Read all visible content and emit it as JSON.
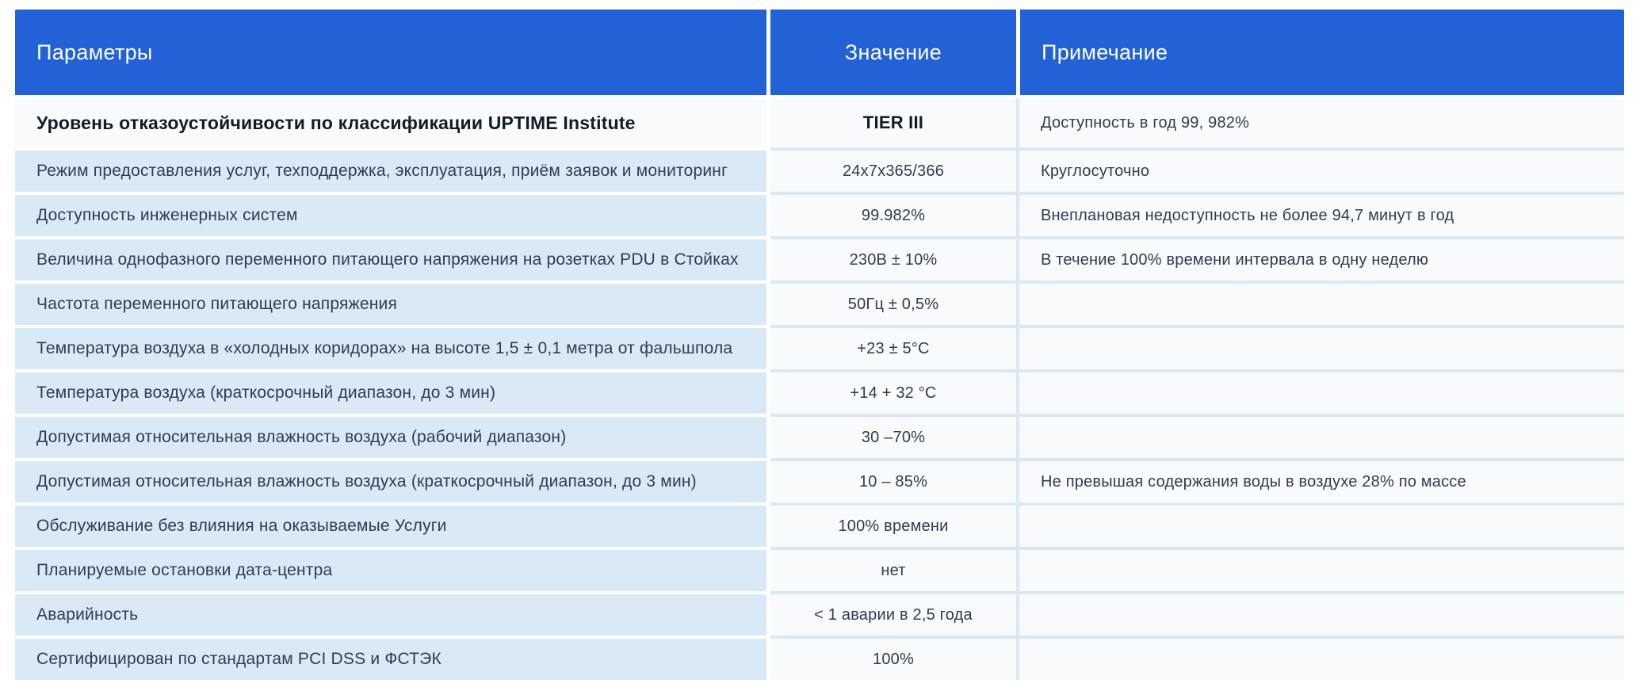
{
  "table": {
    "header": {
      "params": "Параметры",
      "value": "Значение",
      "note": "Примечание"
    },
    "rows": [
      {
        "param": "Уровень отказоустойчивости по классификации UPTIME Institute",
        "value": "TIER III",
        "note": "Доступность в год 99, 982%"
      },
      {
        "param": "Режим предоставления услуг, техподдержка, эксплуатация, приём заявок и мониторинг",
        "value": "24x7x365/366",
        "note": "Круглосуточно"
      },
      {
        "param": "Доступность инженерных систем",
        "value": "99.982%",
        "note": "Внеплановая недоступность не более 94,7 минут в год"
      },
      {
        "param": "Величина однофазного переменного питающего напряжения на розетках PDU в Стойках",
        "value": "230В ± 10%",
        "note": "В течение 100% времени интервала в одну неделю"
      },
      {
        "param": "Частота переменного питающего напряжения",
        "value": "50Гц ± 0,5%",
        "note": ""
      },
      {
        "param": "Температура воздуха в «холодных коридорах» на высоте 1,5 ± 0,1 метра от фальшпола",
        "value": "+23 ± 5°C",
        "note": ""
      },
      {
        "param": "Температура воздуха (краткосрочный диапазон, до 3 мин)",
        "value": "+14 + 32 °C",
        "note": ""
      },
      {
        "param": "Допустимая относительная влажность воздуха (рабочий диапазон)",
        "value": "30 –70%",
        "note": ""
      },
      {
        "param": "Допустимая относительная влажность воздуха (краткосрочный диапазон, до 3 мин)",
        "value": "10 – 85%",
        "note": "Не превышая содержания воды в воздухе 28% по массе"
      },
      {
        "param": "Обслуживание без влияния на оказываемые Услуги",
        "value": "100% времени",
        "note": ""
      },
      {
        "param": "Планируемые остановки дата-центра",
        "value": "нет",
        "note": ""
      },
      {
        "param": "Аварийность",
        "value": "< 1 аварии в 2,5 года",
        "note": ""
      },
      {
        "param": "Сертифицирован по стандартам PCI DSS и ФСТЭК",
        "value": "100%",
        "note": ""
      }
    ],
    "colors": {
      "header_blue": "#2361d6",
      "row_blue": "#d9eaf6",
      "cell_white": "#f8fafc",
      "separator_blue": "#d9e9f5",
      "text_dark": "#2e3d4f",
      "text_emphasis": "#111c27"
    }
  }
}
